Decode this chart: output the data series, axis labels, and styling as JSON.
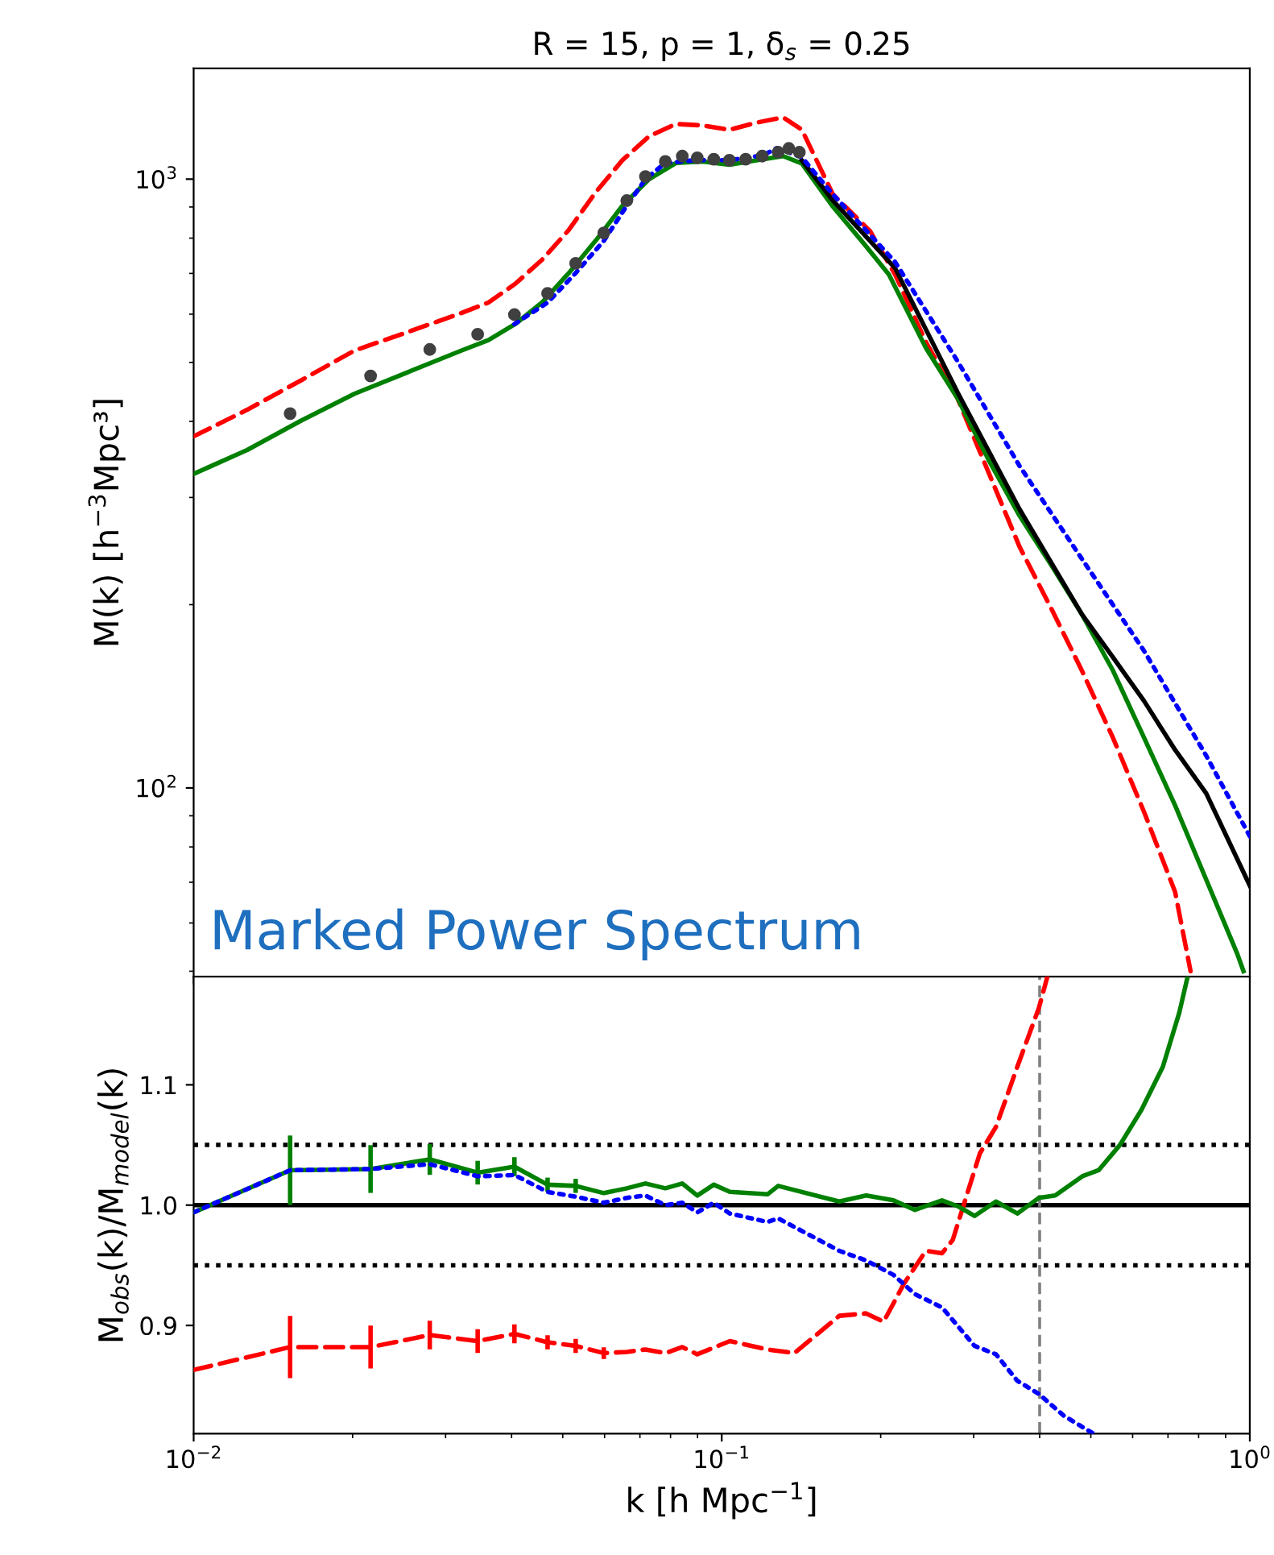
{
  "chart_data": [
    {
      "type": "line",
      "title": "R = 15, p = 1, δ$_{s}$ = 0.25",
      "ylabel": "M(k) [h$^{−3}$Mpc³]",
      "annotations": [
        "Marked Power Spectrum"
      ],
      "log": "xy",
      "xlim": [
        0.01,
        1
      ],
      "ylim": [
        49,
        1520
      ],
      "yticks": [
        {
          "value": 100,
          "label": "10$^{2}$"
        },
        {
          "value": 1000,
          "label": "10$^{3}$"
        }
      ],
      "tick_labels": "y",
      "grid": false,
      "legend": false,
      "series": [
        {
          "color": "#ff0000",
          "line_style": "dashed",
          "x": [
            0.01,
            0.01263,
            0.01596,
            0.02016,
            0.02547,
            0.03217,
            0.03616,
            0.04064,
            0.04567,
            0.05133,
            0.05769,
            0.06484,
            0.07287,
            0.0819,
            0.09204,
            0.1034,
            0.1163,
            0.1307,
            0.1418,
            0.1624,
            0.1911,
            0.213,
            0.2439,
            0.2794,
            0.32,
            0.3664,
            0.4197,
            0.4806,
            0.5504,
            0.6304,
            0.722,
            0.7724
          ],
          "values": [
            378,
            418,
            467,
            523,
            561,
            603,
            627,
            673,
            737,
            825,
            951,
            1074,
            1176,
            1232,
            1225,
            1205,
            1238,
            1263,
            1206,
            944,
            821,
            697,
            539,
            437,
            330,
            249,
            198,
            156,
            121,
            91.4,
            67.5,
            50
          ]
        },
        {
          "color": "#0000ff",
          "line_style": "dotted",
          "x": [
            0.0405,
            0.0468,
            0.0529,
            0.0598,
            0.0661,
            0.0717,
            0.0782,
            0.0899,
            0.1034,
            0.12,
            0.1272,
            0.1418,
            0.1624,
            0.213,
            0.2794,
            0.3664,
            0.4806,
            0.6304,
            0.8269,
            1.0
          ],
          "values": [
            578,
            627,
            701,
            792,
            904,
            1000,
            1063,
            1075,
            1074,
            1095,
            1125,
            1086,
            944,
            731,
            503,
            338,
            238,
            168,
            113,
            83.3
          ]
        },
        {
          "color": "#008000",
          "line_style": "solid",
          "x": [
            0.01,
            0.01263,
            0.01596,
            0.02016,
            0.02547,
            0.03217,
            0.03616,
            0.04064,
            0.04567,
            0.05133,
            0.05769,
            0.06484,
            0.07287,
            0.0819,
            0.09204,
            0.1034,
            0.1163,
            0.1307,
            0.1418,
            0.1624,
            0.186,
            0.2073,
            0.2439,
            0.2794,
            0.32,
            0.3664,
            0.4197,
            0.4806,
            0.5504,
            0.6304,
            0.722,
            0.8269,
            0.9469,
            0.973
          ],
          "values": [
            328,
            359,
            401,
            444,
            482,
            523,
            544,
            578,
            627,
            701,
            792,
            904,
            1000,
            1063,
            1069,
            1056,
            1074,
            1091,
            1061,
            901,
            783,
            697,
            527,
            437,
            346,
            280,
            233,
            193,
            156,
            121,
            93.6,
            70.7,
            53.4,
            50
          ]
        },
        {
          "color": "#000000",
          "line_style": "solid",
          "x": [
            0.1418,
            0.1624,
            0.213,
            0.2794,
            0.3664,
            0.4806,
            0.5504,
            0.6304,
            0.722,
            0.8269,
            1.0
          ],
          "values": [
            1074,
            922,
            714,
            447,
            287,
            193,
            164,
            139,
            115.5,
            98,
            69.1
          ]
        },
        {
          "type": "scatter",
          "color": "#404040",
          "marker": "circle",
          "x": [
            0.01523,
            0.02163,
            0.028,
            0.0345,
            0.0405,
            0.0468,
            0.0529,
            0.0598,
            0.0661,
            0.0717,
            0.0782,
            0.0842,
            0.0899,
            0.0966,
            0.1034,
            0.111,
            0.1193,
            0.1279,
            0.134,
            0.1403
          ],
          "values": [
            412,
            475,
            525,
            556,
            599,
            649,
            727,
            816,
            922,
            1010,
            1069,
            1091,
            1084,
            1078,
            1074,
            1078,
            1091,
            1107,
            1123,
            1107
          ]
        }
      ]
    },
    {
      "type": "line",
      "xlabel": "k [h Mpc$^{−1}$]",
      "ylabel": "M$_{obs}$(k)/M$_{model}$(k)",
      "log": "x",
      "xlim": [
        0.01,
        1
      ],
      "xticks": [
        {
          "value": 0.01,
          "label": "10$^{−2}$"
        },
        {
          "value": 0.1,
          "label": "10$^{−1}$"
        },
        {
          "value": 1,
          "label": "10$^{0}$"
        }
      ],
      "ylim": [
        0.81,
        1.19
      ],
      "yticks": [
        0.9,
        {
          "value": 1.0,
          "label": "1.0"
        },
        1.1
      ],
      "grid": false,
      "legend": false,
      "ref_lines": [
        {
          "axis": "y",
          "value": 1.0,
          "color": "#000000",
          "line_style": "solid"
        },
        {
          "axis": "y",
          "value": 1.05,
          "color": "#000000",
          "line_style": "dotted"
        },
        {
          "axis": "y",
          "value": 0.95,
          "color": "#000000",
          "line_style": "dotted"
        },
        {
          "axis": "x",
          "value": 0.4,
          "color": "#808080",
          "line_style": "dashed"
        }
      ],
      "series": [
        {
          "color": "#0000ff",
          "line_style": "dotted",
          "x": [
            0.01,
            0.01523,
            0.02163,
            0.028,
            0.0345,
            0.0405,
            0.0468,
            0.0529,
            0.0598,
            0.0661,
            0.0717,
            0.0782,
            0.0842,
            0.0899,
            0.0966,
            0.1036,
            0.1221,
            0.1279,
            0.167,
            0.1877,
            0.2115,
            0.2322,
            0.2613,
            0.3011,
            0.3306,
            0.3629,
            0.3987,
            0.4443,
            0.5061
          ],
          "values": [
            0.994,
            1.029,
            1.03,
            1.034,
            1.024,
            1.025,
            1.011,
            1.007,
            1.002,
            1.006,
            1.008,
            1.0,
            1.002,
            0.994,
            1.002,
            0.993,
            0.986,
            0.989,
            0.962,
            0.954,
            0.942,
            0.926,
            0.915,
            0.883,
            0.876,
            0.854,
            0.843,
            0.825,
            0.81
          ]
        },
        {
          "color": "#ff0000",
          "line_style": "dashed",
          "x": [
            0.01,
            0.01523,
            0.02163,
            0.028,
            0.0345,
            0.0405,
            0.0468,
            0.0529,
            0.0598,
            0.0661,
            0.0717,
            0.0782,
            0.0842,
            0.0899,
            0.1036,
            0.1221,
            0.1373,
            0.167,
            0.1877,
            0.2025,
            0.2216,
            0.2435,
            0.2613,
            0.2738,
            0.3082,
            0.3306,
            0.3629,
            0.3987,
            0.4138
          ],
          "values": [
            0.863,
            0.882,
            0.882,
            0.892,
            0.887,
            0.893,
            0.886,
            0.883,
            0.877,
            0.878,
            0.88,
            0.877,
            0.882,
            0.876,
            0.887,
            0.88,
            0.877,
            0.908,
            0.91,
            0.903,
            0.935,
            0.962,
            0.96,
            0.971,
            1.043,
            1.065,
            1.115,
            1.164,
            1.19
          ],
          "errors": [
            null,
            0.024,
            0.016,
            0.01,
            0.008,
            0.006,
            0.004,
            0.004,
            0.003,
            null,
            null,
            null,
            null,
            null,
            null,
            null,
            null,
            null,
            null,
            null,
            null,
            null,
            null,
            null,
            null,
            null,
            null,
            null,
            null
          ]
        },
        {
          "color": "#008000",
          "line_style": "solid",
          "x": [
            0.01,
            0.01523,
            0.02163,
            0.028,
            0.0345,
            0.0405,
            0.0468,
            0.0529,
            0.0598,
            0.0661,
            0.0717,
            0.0782,
            0.0842,
            0.0899,
            0.0966,
            0.1036,
            0.1221,
            0.1279,
            0.167,
            0.1877,
            0.2115,
            0.2322,
            0.2613,
            0.2803,
            0.3011,
            0.3306,
            0.3629,
            0.3987,
            0.4281,
            0.4818,
            0.5172,
            0.5676,
            0.6232,
            0.6845,
            0.7353,
            0.7627
          ],
          "values": [
            0.994,
            1.029,
            1.03,
            1.038,
            1.027,
            1.032,
            1.017,
            1.016,
            1.01,
            1.014,
            1.018,
            1.014,
            1.018,
            1.008,
            1.017,
            1.011,
            1.009,
            1.016,
            1.003,
            1.008,
            1.004,
            0.996,
            1.004,
            0.999,
            0.991,
            1.003,
            0.993,
            1.006,
            1.008,
            1.024,
            1.029,
            1.05,
            1.079,
            1.115,
            1.16,
            1.19
          ],
          "errors": [
            null,
            0.027,
            0.018,
            0.011,
            0.008,
            0.006,
            0.004,
            0.004,
            null,
            null,
            null,
            null,
            null,
            null,
            null,
            null,
            null,
            null,
            null,
            null,
            null,
            null,
            null,
            null,
            null,
            null,
            null,
            null,
            null,
            null,
            null,
            null,
            null,
            null,
            null,
            null
          ]
        }
      ]
    }
  ]
}
